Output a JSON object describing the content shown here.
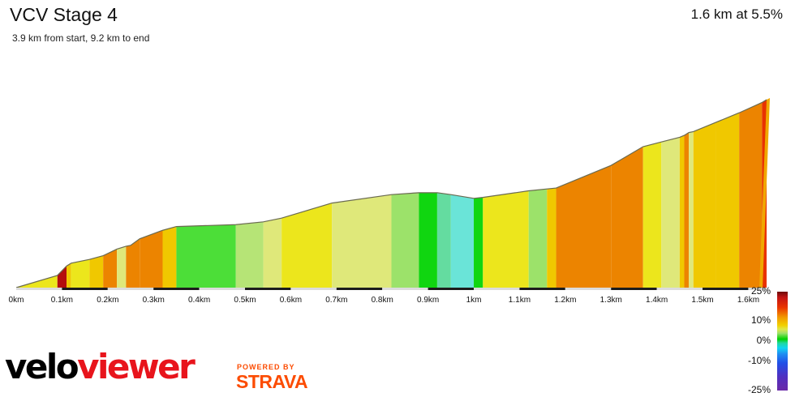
{
  "header": {
    "title": "VCV Stage 4",
    "subtitle": "3.9 km from start, 9.2 km to end",
    "summary": "1.6 km at 5.5%"
  },
  "legend": {
    "labels": [
      "25%",
      "10%",
      "0%",
      "-10%",
      "-25%"
    ]
  },
  "branding": {
    "logo_part1": "velo",
    "logo_part2": "viewer",
    "powered_by": "POWERED BY",
    "strava": "STRAVA"
  },
  "colors": {
    "gradient_dark_red": "#b40d0d",
    "gradient_red": "#e83200",
    "gradient_orange": "#ec8400",
    "gradient_amber": "#f0a800",
    "gradient_gold": "#f0c800",
    "gradient_yellow": "#ece61c",
    "gradient_pale_yellow": "#dfe87a",
    "gradient_pale_green": "#b6e476",
    "gradient_light_green": "#9ce26a",
    "gradient_green": "#4cde38",
    "gradient_bright_green": "#10d610",
    "gradient_mint": "#64dca0",
    "gradient_cyan": "#6ae4d8",
    "strava_orange": "#fc4c02",
    "logo_red": "#e8141c"
  },
  "chart_data": {
    "type": "area",
    "title": "VCV Stage 4",
    "xlabel": "",
    "ylabel": "",
    "x_unit": "km",
    "xlim": [
      0,
      1.64
    ],
    "x_ticks": [
      "0km",
      "0.1km",
      "0.2km",
      "0.3km",
      "0.4km",
      "0.5km",
      "0.6km",
      "0.7km",
      "0.8km",
      "0.9km",
      "1km",
      "1.1km",
      "1.2km",
      "1.3km",
      "1.4km",
      "1.5km",
      "1.6km"
    ],
    "x_tick_values": [
      0,
      0.1,
      0.2,
      0.3,
      0.4,
      0.5,
      0.6,
      0.7,
      0.8,
      0.9,
      1.0,
      1.1,
      1.2,
      1.3,
      1.4,
      1.5,
      1.6
    ],
    "y_unit": "relative elevation",
    "ylim": [
      0,
      100
    ],
    "profile": {
      "x": [
        0,
        0.09,
        0.11,
        0.12,
        0.16,
        0.19,
        0.22,
        0.24,
        0.25,
        0.27,
        0.32,
        0.35,
        0.48,
        0.54,
        0.58,
        0.69,
        0.82,
        0.88,
        0.92,
        0.95,
        1.0,
        1.02,
        1.12,
        1.16,
        1.18,
        1.3,
        1.37,
        1.41,
        1.45,
        1.46,
        1.47,
        1.48,
        1.53,
        1.58,
        1.63,
        1.64
      ],
      "y": [
        0,
        6.5,
        11.5,
        13,
        15,
        17,
        20.5,
        22,
        22.5,
        26,
        30.5,
        32.5,
        33.5,
        35,
        37,
        45,
        49.5,
        50.5,
        50.5,
        49.5,
        47.5,
        48,
        51.5,
        52.5,
        53,
        65,
        75,
        77.5,
        80,
        81,
        82.5,
        83,
        88,
        93,
        98.5,
        100
      ]
    },
    "segment_colors": [
      "#ece61c",
      "#b40d0d",
      "#f0c800",
      "#ece61c",
      "#f0c800",
      "#ec8400",
      "#dfe87a",
      "#ec8400",
      "#ec8400",
      "#ec8400",
      "#f0c800",
      "#4cde38",
      "#b6e476",
      "#dfe87a",
      "#ece61c",
      "#dfe87a",
      "#9ce26a",
      "#10d610",
      "#64dca0",
      "#6ae4d8",
      "#10d610",
      "#ece61c",
      "#9ce26a",
      "#f0c800",
      "#ec8400",
      "#ec8400",
      "#ece61c",
      "#dfe87a",
      "#f0c800",
      "#ec8400",
      "#dfe87a",
      "#f0c800",
      "#f0c800",
      "#ec8400",
      "#e83200"
    ],
    "end_cap_color": "#f0a800",
    "grid": false,
    "legend": "color scale bottom-right"
  }
}
